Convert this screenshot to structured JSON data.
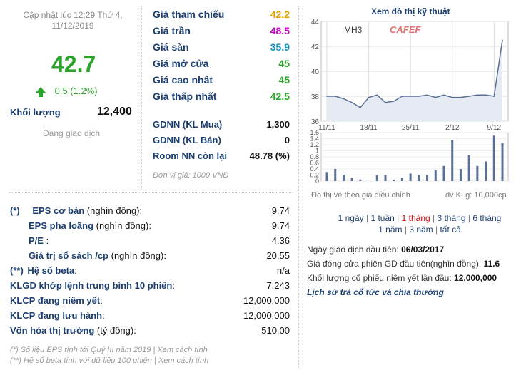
{
  "left_panel": {
    "update_line1": "Cập nhật lúc 12:29 Thứ 4,",
    "update_line2": "11/12/2019",
    "price": "42.7",
    "change": "0.5 (1.2%)",
    "volume_label": "Khối lượng",
    "volume_value": "12,400",
    "trading_status": "Đang giao dịch",
    "colors": {
      "up": "#2aa52a",
      "ceiling": "#cc00cc",
      "floor": "#1e90c0",
      "ref": "#e0a000"
    }
  },
  "price_stats": [
    {
      "label": "Giá tham chiếu",
      "value": "42.2",
      "color": "#e0a000"
    },
    {
      "label": "Giá trần",
      "value": "48.5",
      "color": "#cc00cc"
    },
    {
      "label": "Giá sàn",
      "value": "35.9",
      "color": "#1e90c0"
    },
    {
      "label": "Giá mở cửa",
      "value": "45",
      "color": "#2aa52a"
    },
    {
      "label": "Giá cao nhất",
      "value": "45",
      "color": "#2aa52a"
    },
    {
      "label": "Giá thấp nhất",
      "value": "42.5",
      "color": "#2aa52a"
    }
  ],
  "foreign": [
    {
      "label": "GDNN (KL Mua)",
      "value": "1,300"
    },
    {
      "label": "GDNN (KL Bán)",
      "value": "0"
    },
    {
      "label": "Room NN còn lại",
      "value": "48.78 (%)"
    }
  ],
  "unit_note": "Đơn vị giá: 1000 VNĐ",
  "financials": [
    {
      "prefix": "(*)",
      "label": "EPS cơ bản",
      "suffix": " (nghìn đồng):",
      "value": "9.74"
    },
    {
      "prefix": "",
      "label": "EPS pha loãng",
      "suffix": " (nghìn đồng):",
      "value": "9.74"
    },
    {
      "prefix": "",
      "label": "P/E",
      "suffix": " :",
      "value": "4.36"
    },
    {
      "prefix": "",
      "label": "Giá trị sổ sách /cp",
      "suffix": " (nghìn đồng):",
      "value": "20.55"
    },
    {
      "prefix": "(**)",
      "label": "Hệ số beta",
      "suffix": ":",
      "value": "n/a"
    },
    {
      "prefix": "",
      "label": "KLGD khớp lệnh trung bình 10 phiên",
      "suffix": ":",
      "value": "7,243"
    },
    {
      "prefix": "",
      "label": "KLCP đang niêm yết",
      "suffix": ":",
      "value": "12,000,000"
    },
    {
      "prefix": "",
      "label": "KLCP đang lưu hành",
      "suffix": ":",
      "value": "12,000,000"
    },
    {
      "prefix": "",
      "label": "Vốn hóa thị trường",
      "suffix": " (tỷ đồng):",
      "value": "510.00"
    }
  ],
  "footnotes": [
    "(*) Số liệu EPS tính tới Quý III năm 2019 | Xem cách tính",
    "(**) Hệ số beta tính với dữ liệu 100 phiên | Xem cách tính"
  ],
  "chart": {
    "title": "Xem đồ thị kỹ thuật",
    "symbol": "MH3",
    "brand": "CAFEF",
    "note": "Đồ thị vẽ theo giá điều chỉnh",
    "volume_unit": "đv KLg: 10,000cp",
    "ranges": [
      "1 ngày",
      "1 tuần",
      "1 tháng",
      "3 tháng",
      "6 tháng",
      "1 năm",
      "3 năm",
      "tất cả"
    ],
    "selected_range": "1 tháng"
  },
  "chart_data": {
    "type": "line",
    "price_axis": {
      "ylim": [
        36,
        44
      ],
      "ticks": [
        "44",
        "42",
        "40",
        "38",
        "36"
      ]
    },
    "volume_axis": {
      "ylim": [
        0,
        1.6
      ],
      "ticks": [
        "1.6",
        "1.4",
        "1.2",
        "1",
        "0.8",
        "0.6",
        "0.4",
        "0.2",
        "0"
      ]
    },
    "x_ticks": [
      "11/11",
      "18/11",
      "25/11",
      "2/12",
      "9/12"
    ],
    "price": [
      38,
      38,
      37.8,
      37.5,
      37.1,
      37.9,
      38.1,
      37.5,
      37.6,
      38,
      38,
      38,
      38.1,
      37.9,
      38.1,
      37.9,
      37.9,
      38,
      38.1,
      38.1,
      38,
      42.5
    ],
    "volume": [
      0.3,
      0.4,
      0.2,
      0.1,
      0.05,
      0,
      0.2,
      0.2,
      0.05,
      0.1,
      0.25,
      0.2,
      0.2,
      0.35,
      0.5,
      1.35,
      0.4,
      0.85,
      0.5,
      0.65,
      1.5,
      1.25
    ]
  },
  "listing_info": [
    {
      "label": "Ngày giao dịch đầu tiên: ",
      "value": "06/03/2017"
    },
    {
      "label": "Giá đóng cửa phiên GD đầu tiên(nghìn đồng): ",
      "value": "11.6"
    },
    {
      "label": "Khối lượng cổ phiếu niêm yết lần đầu: ",
      "value": "12,000,000"
    }
  ],
  "history_link": "Lịch sử trả cổ tức và chia thưởng"
}
